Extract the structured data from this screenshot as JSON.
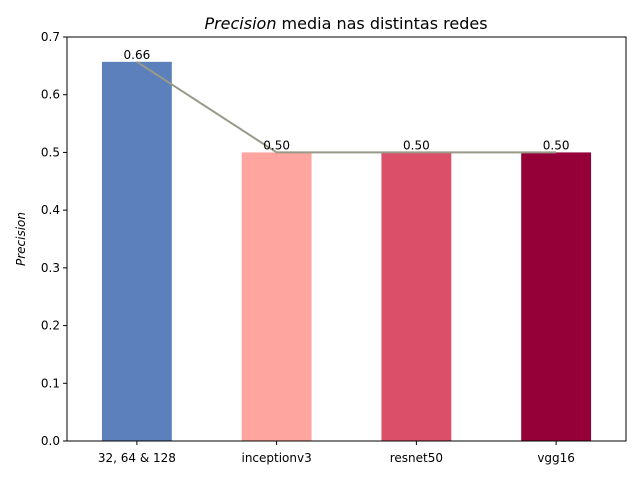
{
  "chart_data": {
    "type": "bar",
    "title_italic": "Precision",
    "title_rest": " media nas distintas redes",
    "ylabel": "Precision",
    "xlabel": "",
    "categories": [
      "32, 64 & 128",
      "inceptionv3",
      "resnet50",
      "vgg16"
    ],
    "values": [
      0.657,
      0.5,
      0.5,
      0.5
    ],
    "data_labels": [
      "0.66",
      "0.50",
      "0.50",
      "0.50"
    ],
    "bar_colors": [
      "#5b80bb",
      "#fea59f",
      "#dc4f68",
      "#960039"
    ],
    "line_color": "#999988",
    "overlay_line": true,
    "ylim": [
      0,
      0.7
    ],
    "yticks": [
      0.0,
      0.1,
      0.2,
      0.3,
      0.4,
      0.5,
      0.6,
      0.7
    ],
    "ytick_labels": [
      "0.0",
      "0.1",
      "0.2",
      "0.3",
      "0.4",
      "0.5",
      "0.6",
      "0.7"
    ],
    "grid": false,
    "legend": "none"
  }
}
